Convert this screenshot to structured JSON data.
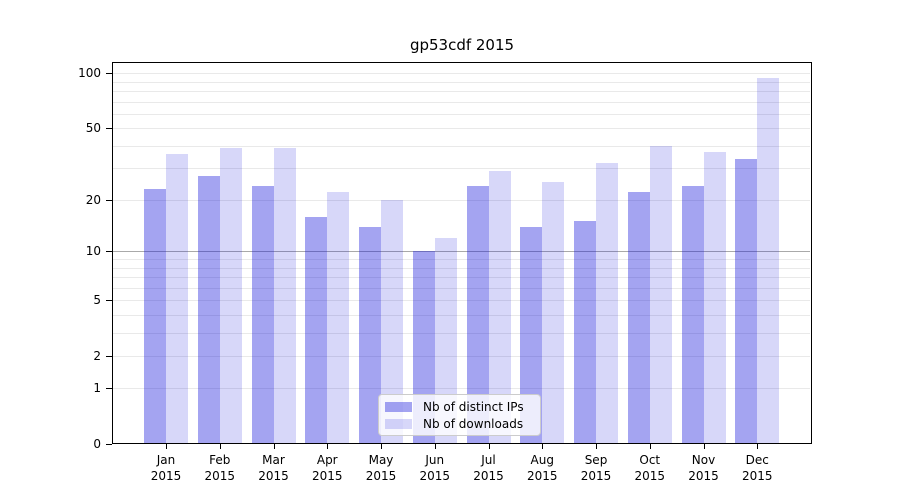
{
  "figure": {
    "title": "gp53cdf 2015"
  },
  "chart_data": {
    "type": "bar",
    "title": "gp53cdf 2015",
    "xlabel": "",
    "ylabel": "",
    "yscale": "log1p",
    "ylim": [
      0,
      118
    ],
    "grid": true,
    "legend_position": "bottom-center",
    "categories": [
      {
        "month": "Jan",
        "year": "2015"
      },
      {
        "month": "Feb",
        "year": "2015"
      },
      {
        "month": "Mar",
        "year": "2015"
      },
      {
        "month": "Apr",
        "year": "2015"
      },
      {
        "month": "May",
        "year": "2015"
      },
      {
        "month": "Jun",
        "year": "2015"
      },
      {
        "month": "Jul",
        "year": "2015"
      },
      {
        "month": "Aug",
        "year": "2015"
      },
      {
        "month": "Sep",
        "year": "2015"
      },
      {
        "month": "Oct",
        "year": "2015"
      },
      {
        "month": "Nov",
        "year": "2015"
      },
      {
        "month": "Dec",
        "year": "2015"
      }
    ],
    "series": [
      {
        "name": "Nb of distinct IPs",
        "color": "#a6a6f2",
        "rgba": "rgba(20,20,220,0.39)",
        "values": [
          23,
          27,
          24,
          16,
          14,
          10,
          24,
          14,
          15,
          22,
          24,
          34
        ]
      },
      {
        "name": "Nb of downloads",
        "color": "#d9d9f9",
        "rgba": "rgba(20,20,220,0.17)",
        "values": [
          36,
          39,
          39,
          22,
          20,
          12,
          29,
          25,
          32,
          40,
          37,
          94
        ]
      }
    ],
    "yticks": [
      0,
      1,
      2,
      5,
      10,
      20,
      50,
      100
    ],
    "gridline_values": [
      1,
      2,
      3,
      4,
      5,
      6,
      7,
      8,
      9,
      10,
      20,
      30,
      40,
      50,
      60,
      70,
      80,
      90,
      100
    ],
    "grid_emphasis_value": 10,
    "colors": {
      "axis": "#000000",
      "grid_minor": "#e9e9e9",
      "grid_emphasis": "#a9a9a9",
      "legend_border": "#cccccc"
    }
  }
}
